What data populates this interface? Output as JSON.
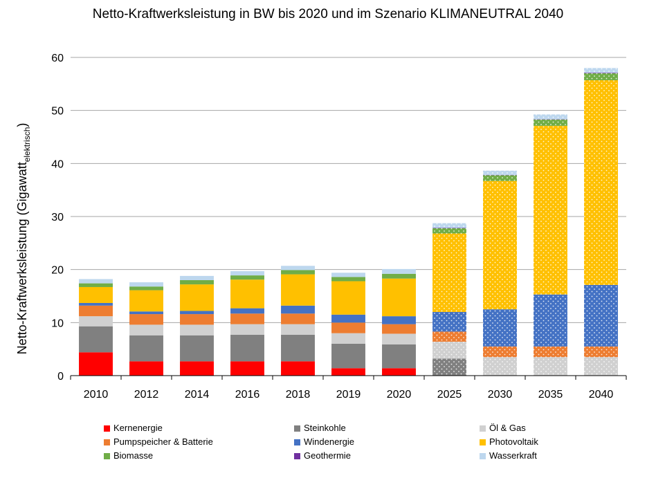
{
  "chart_data": {
    "type": "bar",
    "stacked": true,
    "title": "Netto-Kraftwerksleistung in BW bis 2020 und im Szenario KLIMANEUTRAL 2040",
    "ylabel": "Netto-Kraftwerksleistung (Gigawatt",
    "ylabel_sub": "elektrisch",
    "ylabel_close": ")",
    "ylim": [
      0,
      60
    ],
    "yticks": [
      0,
      10,
      20,
      30,
      40,
      50,
      60
    ],
    "grid": true,
    "legend_position": "bottom",
    "categories": [
      "2010",
      "2012",
      "2014",
      "2016",
      "2018",
      "2019",
      "2020",
      "2025",
      "2030",
      "2035",
      "2040"
    ],
    "scenario_categories": [
      "2025",
      "2030",
      "2035",
      "2040"
    ],
    "series": [
      {
        "name": "Kernenergie",
        "color": "#ff0000",
        "values": [
          4.4,
          2.7,
          2.7,
          2.7,
          2.7,
          1.4,
          1.4,
          0,
          0,
          0,
          0
        ]
      },
      {
        "name": "Steinkohle",
        "color": "#808080",
        "values": [
          4.9,
          4.9,
          4.9,
          5.0,
          5.0,
          4.6,
          4.5,
          3.2,
          0,
          0,
          0
        ]
      },
      {
        "name": "Öl & Gas",
        "color": "#d0d0d0",
        "values": [
          1.9,
          2.0,
          2.0,
          2.0,
          2.0,
          2.0,
          2.0,
          3.2,
          3.5,
          3.5,
          3.5
        ]
      },
      {
        "name": "Pumpspeicher & Batterie",
        "color": "#ed7d31",
        "values": [
          2.0,
          2.0,
          2.0,
          2.0,
          2.0,
          2.0,
          1.8,
          1.9,
          2.0,
          2.0,
          2.0
        ]
      },
      {
        "name": "Windenergie",
        "color": "#4472c4",
        "values": [
          0.5,
          0.5,
          0.6,
          1.0,
          1.5,
          1.5,
          1.5,
          3.7,
          7.0,
          9.8,
          11.6
        ]
      },
      {
        "name": "Photovoltaik",
        "color": "#ffc000",
        "values": [
          3.0,
          4.0,
          5.0,
          5.4,
          5.9,
          6.3,
          7.1,
          14.8,
          24.2,
          31.8,
          38.6
        ]
      },
      {
        "name": "Biomasse",
        "color": "#70ad47",
        "values": [
          0.7,
          0.7,
          0.8,
          0.8,
          0.8,
          0.8,
          0.9,
          1.0,
          1.1,
          1.2,
          1.3
        ]
      },
      {
        "name": "Geothermie",
        "color": "#7030a0",
        "values": [
          0,
          0,
          0,
          0,
          0,
          0,
          0,
          0.05,
          0.05,
          0.05,
          0.1
        ]
      },
      {
        "name": "Wasserkraft",
        "color": "#bdd7ee",
        "values": [
          0.8,
          0.8,
          0.8,
          0.8,
          0.8,
          0.8,
          0.9,
          0.9,
          0.8,
          0.9,
          0.9
        ]
      }
    ]
  }
}
